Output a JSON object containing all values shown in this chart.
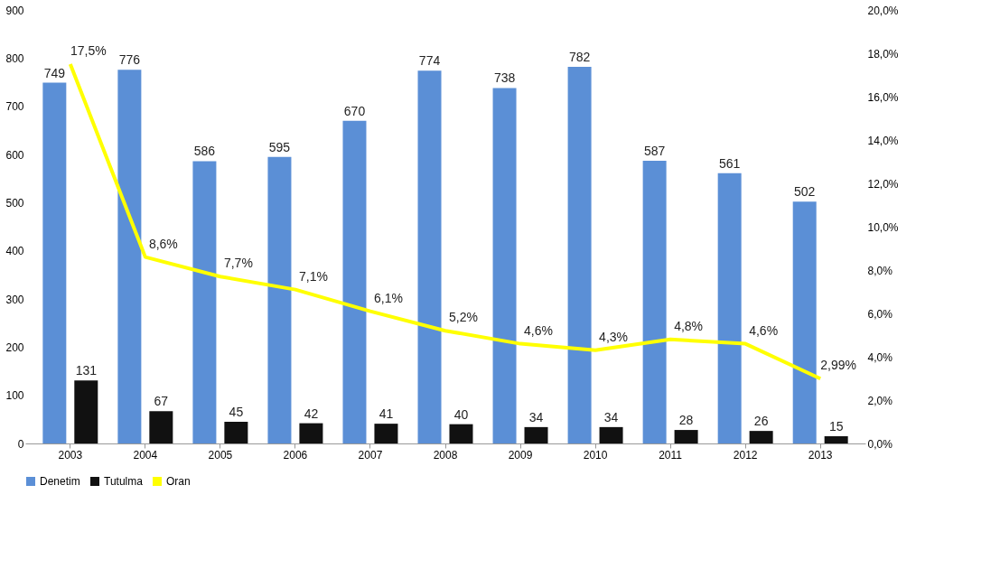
{
  "chart_data": {
    "type": "bar",
    "categories": [
      "2003",
      "2004",
      "2005",
      "2006",
      "2007",
      "2008",
      "2009",
      "2010",
      "2011",
      "2012",
      "2013"
    ],
    "series": [
      {
        "name": "Denetim",
        "color": "#5b8fd6",
        "values": [
          749,
          776,
          586,
          595,
          670,
          774,
          738,
          782,
          587,
          561,
          502
        ],
        "value_labels": [
          "749",
          "776",
          "586",
          "595",
          "670",
          "774",
          "738",
          "782",
          "587",
          "561",
          "502"
        ]
      },
      {
        "name": "Tutulma",
        "color": "#111111",
        "values": [
          131,
          67,
          45,
          42,
          41,
          40,
          34,
          34,
          28,
          26,
          15
        ],
        "value_labels": [
          "131",
          "67",
          "45",
          "42",
          "41",
          "40",
          "34",
          "34",
          "28",
          "26",
          "15"
        ]
      },
      {
        "name": "Oran",
        "type": "line",
        "axis": "y2",
        "color": "#ffff00",
        "values": [
          17.5,
          8.6,
          7.7,
          7.1,
          6.1,
          5.2,
          4.6,
          4.3,
          4.8,
          4.6,
          2.99
        ],
        "value_labels": [
          "17,5%",
          "8,6%",
          "7,7%",
          "7,1%",
          "6,1%",
          "5,2%",
          "4,6%",
          "4,3%",
          "4,8%",
          "4,6%",
          "2,99%"
        ]
      }
    ],
    "ylim": [
      0,
      900
    ],
    "yticks": [
      0,
      100,
      200,
      300,
      400,
      500,
      600,
      700,
      800,
      900
    ],
    "y2lim": [
      0,
      20
    ],
    "y2ticks": [
      {
        "value": 0,
        "label": "0,0%"
      },
      {
        "value": 2,
        "label": "2,0%"
      },
      {
        "value": 4,
        "label": "4,0%"
      },
      {
        "value": 6,
        "label": "6,0%"
      },
      {
        "value": 8,
        "label": "8,0%"
      },
      {
        "value": 10,
        "label": "10,0%"
      },
      {
        "value": 12,
        "label": "12,0%"
      },
      {
        "value": 14,
        "label": "14,0%"
      },
      {
        "value": 16,
        "label": "16,0%"
      },
      {
        "value": 18,
        "label": "18,0%"
      },
      {
        "value": 20,
        "label": "20,0%"
      }
    ],
    "grid": false,
    "legend": "bottom",
    "line_style": "solid",
    "marker": "none"
  }
}
